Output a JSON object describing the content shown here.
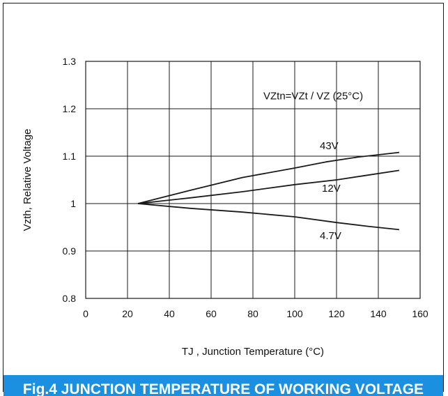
{
  "colors": {
    "caption_bg": "#1b8fe0",
    "caption_text": "#ffffff",
    "line": "#1a1a1a",
    "grid": "#1a1a1a"
  },
  "caption": {
    "text": "Fig.4 JUNCTION TEMPERATURE OF WORKING VOLTAGE"
  },
  "chart_data": {
    "type": "line",
    "title": "",
    "xlabel": "TJ , Junction Temperature (°C)",
    "ylabel": "Vzth, Relative Voltage",
    "xlim": [
      0,
      160
    ],
    "ylim": [
      0.8,
      1.3
    ],
    "x_ticks": [
      0,
      20,
      40,
      60,
      80,
      100,
      120,
      140,
      160
    ],
    "y_ticks": [
      0.8,
      0.9,
      1,
      1.1,
      1.2,
      1.3
    ],
    "x_tick_labels": [
      "0",
      "20",
      "40",
      "60",
      "80",
      "100",
      "120",
      "140",
      "160"
    ],
    "y_tick_labels": [
      "0.8",
      "0.9",
      "1",
      "1.1",
      "1.2",
      "1.3"
    ],
    "grid": true,
    "annotations": [
      {
        "text": "VZtn=VZt / VZ (25°C)",
        "x": 85,
        "y": 1.22
      },
      {
        "text": "43V",
        "x": 112,
        "y": 1.115
      },
      {
        "text": "12V",
        "x": 113,
        "y": 1.025
      },
      {
        "text": "4.7V",
        "x": 112,
        "y": 0.925
      }
    ],
    "series": [
      {
        "name": "43V",
        "x": [
          25,
          50,
          75,
          100,
          115,
          130,
          150
        ],
        "y": [
          1.0,
          1.028,
          1.055,
          1.075,
          1.088,
          1.098,
          1.108
        ]
      },
      {
        "name": "12V",
        "x": [
          25,
          50,
          75,
          100,
          120,
          135,
          150
        ],
        "y": [
          1.0,
          1.012,
          1.025,
          1.04,
          1.05,
          1.06,
          1.07
        ]
      },
      {
        "name": "4.7V",
        "x": [
          25,
          50,
          75,
          100,
          120,
          135,
          150
        ],
        "y": [
          1.0,
          0.99,
          0.982,
          0.972,
          0.96,
          0.952,
          0.945
        ]
      }
    ]
  }
}
